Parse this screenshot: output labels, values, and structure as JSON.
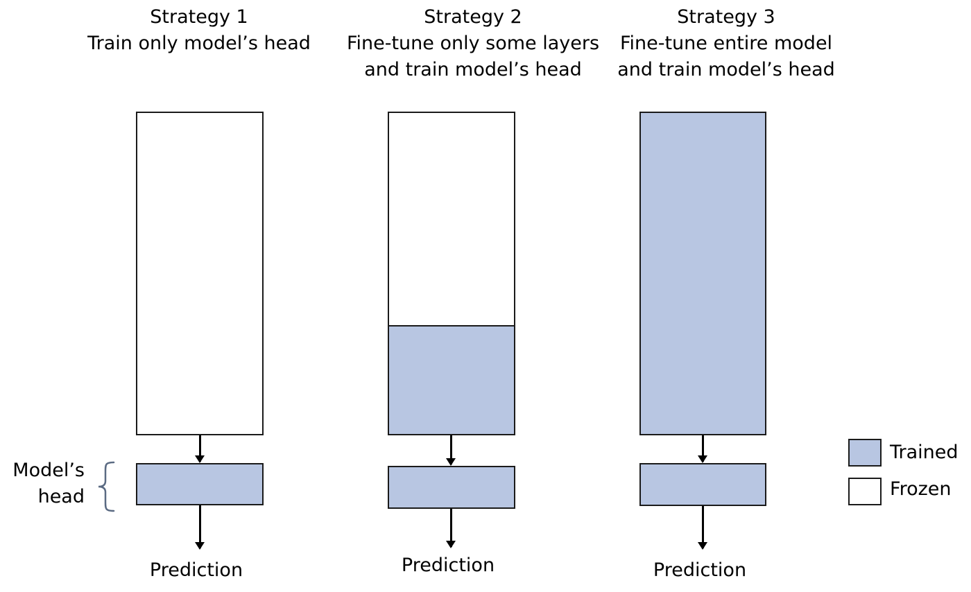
{
  "strategies": [
    {
      "title": "Strategy 1",
      "subtitle": [
        "Train only model’s head"
      ],
      "prediction": "Prediction",
      "trained_fraction": 0
    },
    {
      "title": "Strategy 2",
      "subtitle": [
        "Fine-tune only some layers",
        "and train model’s head"
      ],
      "prediction": "Prediction",
      "trained_fraction": 0.34
    },
    {
      "title": "Strategy 3",
      "subtitle": [
        "Fine-tune entire model",
        "and train model’s head"
      ],
      "prediction": "Prediction",
      "trained_fraction": 1
    }
  ],
  "head_label": [
    "Model’s",
    "head"
  ],
  "legend": [
    {
      "label": "Trained",
      "color": "#b8c6e2"
    },
    {
      "label": "Frozen",
      "color": "#ffffff"
    }
  ],
  "colors": {
    "trained": "#b8c6e2",
    "frozen": "#ffffff",
    "border": "#1a1a1a"
  }
}
